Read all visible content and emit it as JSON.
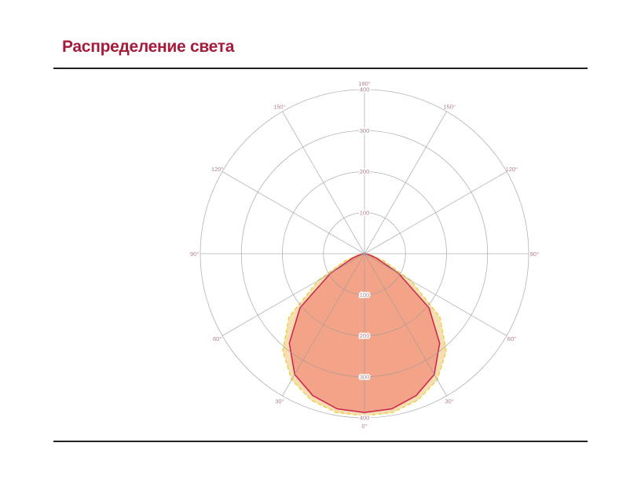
{
  "header": {
    "title": "Распределение света"
  },
  "chart_data": {
    "type": "polar",
    "title": "",
    "angle_labels": [
      "0°",
      "30°",
      "60°",
      "90°",
      "120°",
      "150°",
      "180°"
    ],
    "radial_ticks": [
      100,
      200,
      300,
      400
    ],
    "rlim": [
      0,
      400
    ],
    "grid": true,
    "series": [
      {
        "style": "dashed-yellow",
        "color": "#e8d54a",
        "fill": "#f6d9a8",
        "angles": [
          0,
          10,
          20,
          30,
          40,
          50,
          60,
          70,
          80,
          90
        ],
        "values": [
          395,
          393,
          380,
          355,
          310,
          240,
          130,
          50,
          15,
          0
        ]
      },
      {
        "style": "solid-red",
        "color": "#cc2b4e",
        "fill": "#f2a086",
        "angles": [
          0,
          10,
          20,
          30,
          40,
          50,
          60,
          70,
          80,
          90
        ],
        "values": [
          387,
          384,
          368,
          340,
          285,
          205,
          96,
          30,
          8,
          0
        ]
      }
    ]
  }
}
